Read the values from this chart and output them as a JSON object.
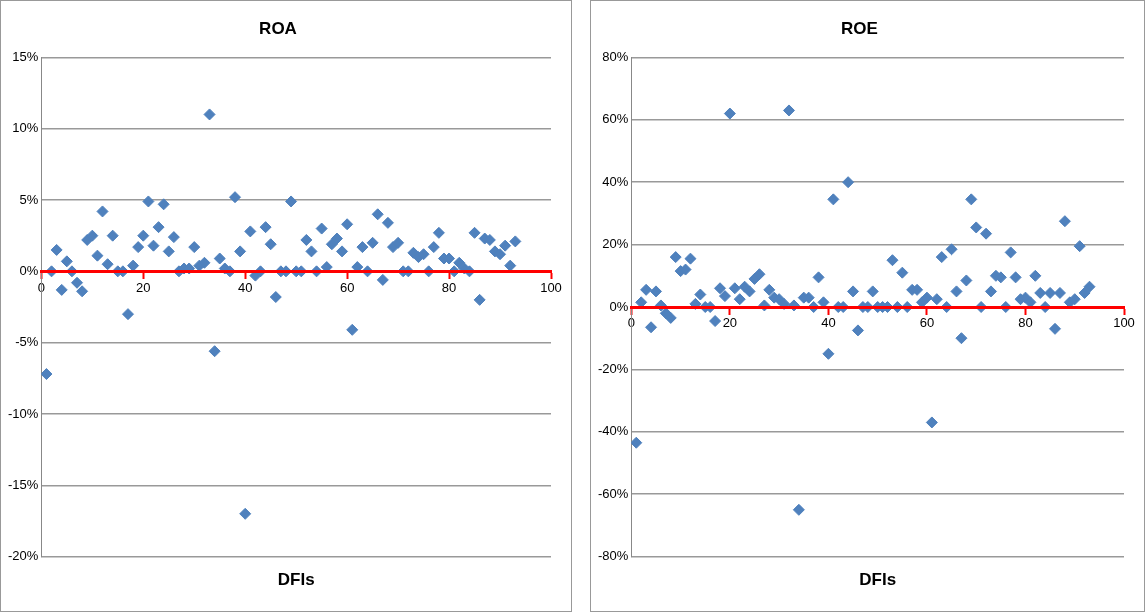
{
  "chart_data": [
    {
      "type": "scatter",
      "title": "ROA",
      "xlabel": "DFIs",
      "marker": "diamond",
      "grid": "y",
      "legend": false,
      "x": [
        1,
        2,
        3,
        4,
        5,
        6,
        7,
        8,
        9,
        10,
        11,
        12,
        13,
        14,
        15,
        16,
        17,
        18,
        19,
        20,
        21,
        22,
        23,
        24,
        25,
        26,
        27,
        28,
        29,
        30,
        31,
        32,
        33,
        34,
        35,
        36,
        37,
        38,
        39,
        40,
        41,
        42,
        43,
        44,
        45,
        46,
        47,
        48,
        49,
        50,
        51,
        52,
        53,
        54,
        55,
        56,
        57,
        58,
        59,
        60,
        61,
        62,
        63,
        64,
        65,
        66,
        67,
        68,
        69,
        70,
        71,
        72,
        73,
        74,
        75,
        76,
        77,
        78,
        79,
        80,
        81,
        82,
        83,
        84,
        85,
        86,
        87,
        88,
        89,
        90,
        91,
        92,
        93
      ],
      "series": [
        {
          "color": "#4f81bd",
          "values": [
            -7.2,
            0,
            1.5,
            -1.3,
            0.7,
            0,
            -0.8,
            -1.4,
            2.2,
            2.5,
            1.1,
            4.2,
            0.5,
            2.5,
            0,
            0,
            -3,
            0.4,
            1.7,
            2.5,
            4.9,
            1.8,
            3.1,
            4.7,
            1.4,
            2.4,
            0,
            0.2,
            0.2,
            1.7,
            0.4,
            0.6,
            11,
            -5.6,
            0.9,
            0.2,
            0,
            5.2,
            1.4,
            -17,
            2.8,
            -0.3,
            0,
            3.1,
            1.9,
            -1.8,
            0,
            0,
            4.9,
            0,
            0,
            2.2,
            1.4,
            0,
            3,
            0.3,
            1.9,
            2.3,
            1.4,
            3.3,
            -4.1,
            0.3,
            1.7,
            0,
            2,
            4,
            -0.6,
            3.4,
            1.7,
            2,
            0,
            0,
            1.3,
            1,
            1.2,
            0,
            1.7,
            2.7,
            0.9,
            0.9,
            0,
            0.6,
            0.2,
            0,
            2.7,
            -2,
            2.3,
            2.2,
            1.4,
            1.2,
            1.8,
            0.4,
            2.1
          ]
        }
      ],
      "xlim": [
        0,
        100
      ],
      "xticks": [
        0,
        20,
        40,
        60,
        80,
        100
      ],
      "ylim": [
        -20,
        15
      ],
      "yticks": [
        {
          "value": -20,
          "label": "-20%"
        },
        {
          "value": -15,
          "label": "-15%"
        },
        {
          "value": -10,
          "label": "-10%"
        },
        {
          "value": -5,
          "label": "-5%"
        },
        {
          "value": 0,
          "label": "0%"
        },
        {
          "value": 5,
          "label": "5%"
        },
        {
          "value": 10,
          "label": "10%"
        },
        {
          "value": 15,
          "label": "15%"
        }
      ]
    },
    {
      "type": "scatter",
      "title": "ROE",
      "xlabel": "DFIs",
      "marker": "diamond",
      "grid": "y",
      "legend": false,
      "x": [
        1,
        2,
        3,
        4,
        5,
        6,
        7,
        8,
        9,
        10,
        11,
        12,
        13,
        14,
        15,
        16,
        17,
        18,
        19,
        20,
        21,
        22,
        23,
        24,
        25,
        26,
        27,
        28,
        29,
        30,
        31,
        32,
        33,
        34,
        35,
        36,
        37,
        38,
        39,
        40,
        41,
        42,
        43,
        44,
        45,
        46,
        47,
        48,
        49,
        50,
        51,
        52,
        53,
        54,
        55,
        56,
        57,
        58,
        59,
        60,
        61,
        62,
        63,
        64,
        65,
        66,
        67,
        68,
        69,
        70,
        71,
        72,
        73,
        74,
        75,
        76,
        77,
        78,
        79,
        80,
        81,
        82,
        83,
        84,
        85,
        86,
        87,
        88,
        89,
        90,
        91,
        92,
        93
      ],
      "series": [
        {
          "color": "#4f81bd",
          "values": [
            -43.5,
            1.5,
            5.5,
            -6.5,
            5,
            0.5,
            -2,
            -3.5,
            16,
            11.5,
            12,
            15.5,
            1,
            4,
            0,
            0,
            -4.5,
            6,
            3.5,
            62,
            6,
            2.5,
            6.5,
            5,
            9,
            10.5,
            0.5,
            5.5,
            3,
            2.5,
            1,
            63,
            0.5,
            -65,
            3,
            3,
            0,
            9.5,
            1.5,
            -15,
            34.5,
            0,
            0,
            40,
            5,
            -7.5,
            0,
            0,
            5,
            0,
            0,
            0,
            15,
            0,
            11,
            0,
            5.5,
            5.5,
            1.5,
            3,
            -37,
            2.5,
            16,
            0,
            18.5,
            5,
            -10,
            8.5,
            34.5,
            25.5,
            0,
            23.5,
            5,
            10,
            9.5,
            0,
            17.5,
            9.5,
            2.5,
            3,
            1.5,
            10,
            4.5,
            0,
            4.5,
            -7,
            4.5,
            27.5,
            1.5,
            2.5,
            19.5,
            4.5,
            6.5
          ]
        }
      ],
      "xlim": [
        0,
        100
      ],
      "xticks": [
        0,
        20,
        40,
        60,
        80,
        100
      ],
      "ylim": [
        -80,
        80
      ],
      "yticks": [
        {
          "value": -80,
          "label": "-80%"
        },
        {
          "value": -60,
          "label": "-60%"
        },
        {
          "value": -40,
          "label": "-40%"
        },
        {
          "value": -20,
          "label": "-20%"
        },
        {
          "value": 0,
          "label": "0%"
        },
        {
          "value": 20,
          "label": "20%"
        },
        {
          "value": 40,
          "label": "40%"
        },
        {
          "value": 60,
          "label": "60%"
        },
        {
          "value": 80,
          "label": "80%"
        }
      ]
    }
  ]
}
